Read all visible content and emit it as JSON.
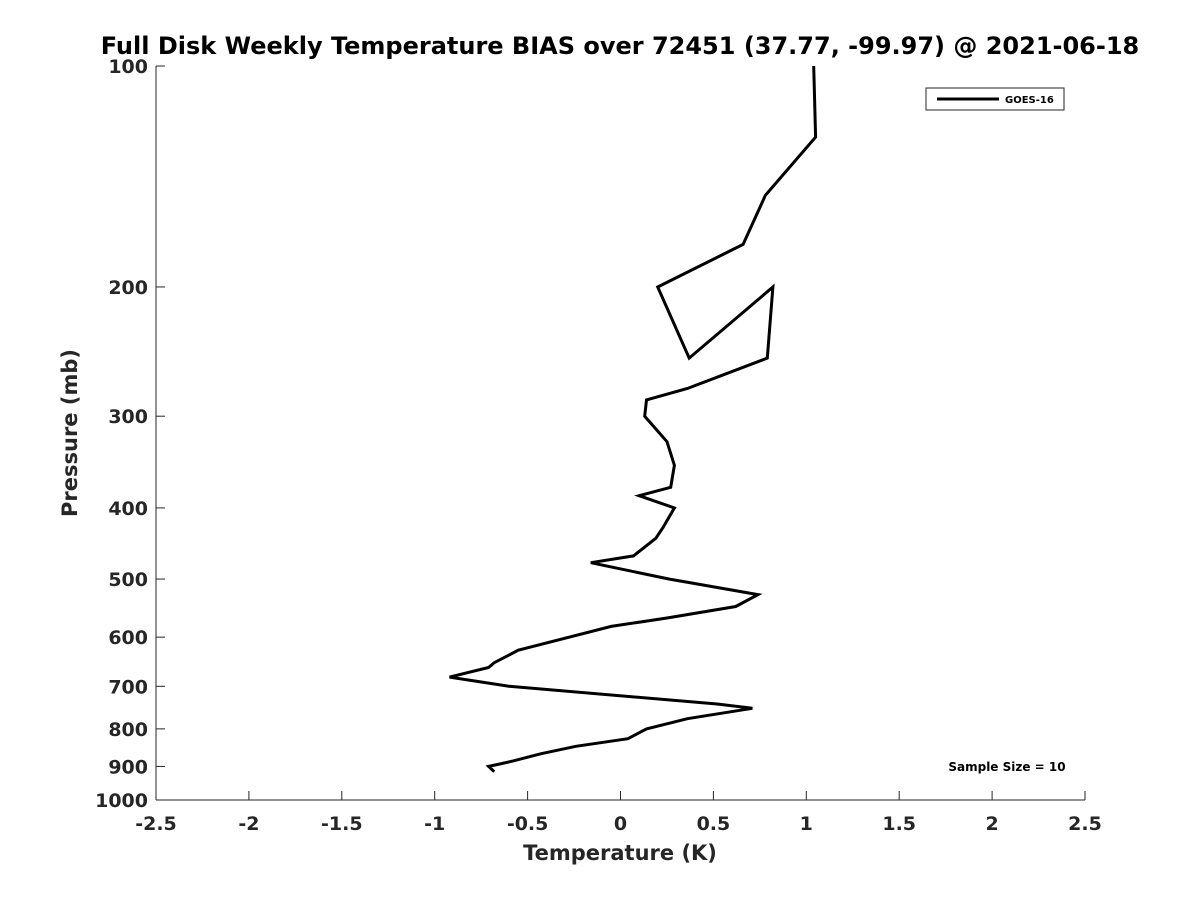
{
  "chart_data": {
    "type": "line",
    "title": "Full Disk Weekly Temperature BIAS over 72451 (37.77, -99.97) @ 2021-06-18",
    "xlabel": "Temperature (K)",
    "ylabel": "Pressure (mb)",
    "xlim": [
      -2.5,
      2.5
    ],
    "ylim": [
      1000,
      100
    ],
    "yscale": "log",
    "y_reversed": true,
    "x_ticks": [
      -2.5,
      -2,
      -1.5,
      -1,
      -0.5,
      0,
      0.5,
      1,
      1.5,
      2,
      2.5
    ],
    "x_tick_labels": [
      "-2.5",
      "-2",
      "-1.5",
      "-1",
      "-0.5",
      "0",
      "0.5",
      "1",
      "1.5",
      "2",
      "2.5"
    ],
    "y_ticks": [
      100,
      200,
      300,
      400,
      500,
      600,
      700,
      800,
      900,
      1000
    ],
    "y_tick_labels": [
      "100",
      "200",
      "300",
      "400",
      "500",
      "600",
      "700",
      "800",
      "900",
      "1000"
    ],
    "grid": false,
    "legend_position": "top-right",
    "series": [
      {
        "name": "GOES-16",
        "color": "#000000",
        "points": [
          {
            "x": 1.04,
            "y": 100
          },
          {
            "x": 1.05,
            "y": 125
          },
          {
            "x": 0.78,
            "y": 150
          },
          {
            "x": 0.66,
            "y": 175
          },
          {
            "x": 0.2,
            "y": 200
          },
          {
            "x": 0.37,
            "y": 250
          },
          {
            "x": 0.82,
            "y": 200
          },
          {
            "x": 0.79,
            "y": 250
          },
          {
            "x": 0.36,
            "y": 275
          },
          {
            "x": 0.14,
            "y": 285
          },
          {
            "x": 0.13,
            "y": 300
          },
          {
            "x": 0.25,
            "y": 325
          },
          {
            "x": 0.29,
            "y": 350
          },
          {
            "x": 0.27,
            "y": 375
          },
          {
            "x": 0.1,
            "y": 385
          },
          {
            "x": 0.29,
            "y": 400
          },
          {
            "x": 0.23,
            "y": 425
          },
          {
            "x": 0.19,
            "y": 440
          },
          {
            "x": 0.07,
            "y": 465
          },
          {
            "x": -0.16,
            "y": 475
          },
          {
            "x": 0.26,
            "y": 500
          },
          {
            "x": 0.74,
            "y": 525
          },
          {
            "x": 0.62,
            "y": 545
          },
          {
            "x": 0.25,
            "y": 565
          },
          {
            "x": -0.05,
            "y": 580
          },
          {
            "x": -0.55,
            "y": 625
          },
          {
            "x": -0.68,
            "y": 650
          },
          {
            "x": -0.71,
            "y": 660
          },
          {
            "x": -0.92,
            "y": 680
          },
          {
            "x": -0.6,
            "y": 700
          },
          {
            "x": 0.52,
            "y": 740
          },
          {
            "x": 0.71,
            "y": 750
          },
          {
            "x": 0.36,
            "y": 775
          },
          {
            "x": 0.14,
            "y": 800
          },
          {
            "x": 0.04,
            "y": 825
          },
          {
            "x": -0.24,
            "y": 845
          },
          {
            "x": -0.43,
            "y": 865
          },
          {
            "x": -0.58,
            "y": 885
          },
          {
            "x": -0.71,
            "y": 900
          },
          {
            "x": -0.68,
            "y": 915
          }
        ]
      }
    ],
    "annotations": [
      {
        "text": "Sample Size = 10"
      }
    ]
  }
}
